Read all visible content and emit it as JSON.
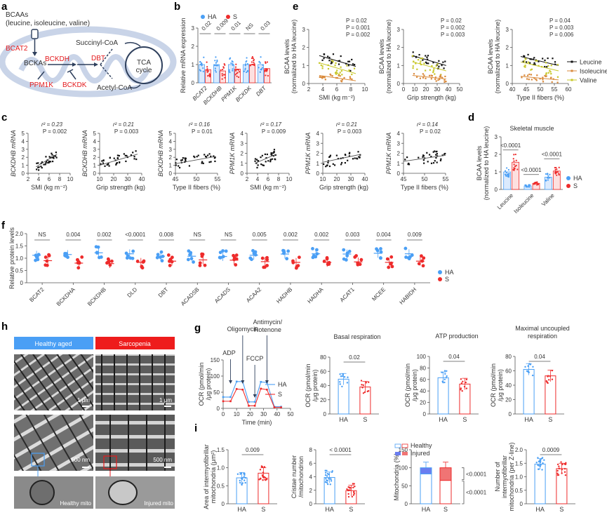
{
  "colors": {
    "HA": "#4a9ff5",
    "S": "#ee2b2b",
    "leucine": "#111111",
    "isoleucine": "#d98a3c",
    "valine": "#c8c82a",
    "mito": "#c9d4e8",
    "dark": "#2e3f5c",
    "enzyme": "#e41a1c"
  },
  "panel_labels": {
    "a": "a",
    "b": "b",
    "c": "c",
    "d": "d",
    "e": "e",
    "f": "f",
    "g": "g",
    "h": "h",
    "i": "i"
  },
  "groups": {
    "HA": "HA",
    "S": "S"
  },
  "panel_a": {
    "title_line1": "BCAAs",
    "title_line2": "(leucine, isoleucine, valine)",
    "bcat2": "BCAT2",
    "bckas": "BCKAs",
    "bckdh": "BCKDH",
    "ppm1k": "PPM1K",
    "bckdk": "BCKDK",
    "dbt": "DBT",
    "succinyl": "Succinyl-CoA",
    "acetyl": "Acetyl-CoA",
    "tca1": "TCA",
    "tca2": "cycle"
  },
  "panel_h": {
    "header_ha": "Healthy aged",
    "header_s": "Sarcopenia",
    "scale_1um": "1 μm",
    "scale_500nm": "500 nm",
    "healthy_mito": "Healthy mito",
    "injured_mito": "Injured mito"
  },
  "chart_data": [
    {
      "id": "b",
      "type": "bar",
      "ylabel": "Relative mRNA expression",
      "ylim": [
        0,
        3
      ],
      "yticks": [
        "0",
        "1",
        "2",
        "3"
      ],
      "categories": [
        "BCAT2",
        "BCKDHB",
        "PPM1K",
        "BCKDK",
        "DBT"
      ],
      "legend": [
        "HA",
        "S"
      ],
      "series": [
        {
          "name": "HA",
          "values": [
            1.0,
            1.0,
            1.0,
            1.0,
            1.0
          ]
        },
        {
          "name": "S",
          "values": [
            0.72,
            0.65,
            0.75,
            1.0,
            0.78
          ]
        }
      ],
      "annotations": [
        "0.02",
        "0.009",
        "0.01",
        "NS",
        "0.03"
      ]
    },
    {
      "id": "c",
      "type": "scatter",
      "plots": [
        {
          "ylabel": "BCKDHB mRNA",
          "xlabel": "SMI (kg m⁻²)",
          "xlim": [
            2,
            10
          ],
          "xticks": [
            "2",
            "4",
            "6",
            "8",
            "10"
          ],
          "ylim": [
            0,
            5
          ],
          "yticks": [
            "0",
            "1",
            "2",
            "3",
            "4",
            "5"
          ],
          "r2": "r² = 0.23",
          "p": "P = 0.002",
          "fit": [
            [
              3.5,
              0.8
            ],
            [
              7.5,
              2.4
            ]
          ]
        },
        {
          "ylabel": "BCKDHB mRNA",
          "xlabel": "Grip strength (kg)",
          "xlim": [
            10,
            40
          ],
          "xticks": [
            "10",
            "20",
            "30",
            "40"
          ],
          "ylim": [
            0,
            5
          ],
          "yticks": [
            "0",
            "1",
            "2",
            "3",
            "4",
            "5"
          ],
          "r2": "r² = 0.21",
          "p": "P = 0.003",
          "fit": [
            [
              10,
              1.0
            ],
            [
              37,
              2.4
            ]
          ]
        },
        {
          "ylabel": "BCKDHB mRNA",
          "xlabel": "Type II fibers (%)",
          "xlim": [
            45,
            55
          ],
          "xticks": [
            "45",
            "50",
            "55"
          ],
          "ylim": [
            0,
            5
          ],
          "yticks": [
            "0",
            "1",
            "2",
            "3",
            "4",
            "5"
          ],
          "r2": "r² = 0.16",
          "p": "P = 0.01",
          "fit": [
            [
              45,
              1.2
            ],
            [
              54.5,
              2.1
            ]
          ]
        },
        {
          "ylabel": "PPM1K mRNA",
          "xlabel": "SMI (kg m⁻²)",
          "xlim": [
            2,
            10
          ],
          "xticks": [
            "2",
            "4",
            "6",
            "8",
            "10"
          ],
          "ylim": [
            0,
            4
          ],
          "yticks": [
            "0",
            "1",
            "2",
            "3",
            "4"
          ],
          "r2": "r² = 0.17",
          "p": "P = 0.009",
          "fit": [
            [
              3.5,
              1.0
            ],
            [
              7.5,
              1.9
            ]
          ]
        },
        {
          "ylabel": "PPM1K mRNA",
          "xlabel": "Grip strength (kg)",
          "xlim": [
            10,
            40
          ],
          "xticks": [
            "10",
            "20",
            "30",
            "40"
          ],
          "ylim": [
            0,
            4
          ],
          "yticks": [
            "0",
            "1",
            "2",
            "3",
            "4"
          ],
          "r2": "r² = 0.21",
          "p": "P = 0.003",
          "fit": [
            [
              10,
              1.1
            ],
            [
              37,
              1.9
            ]
          ]
        },
        {
          "ylabel": "PPM1K mRNA",
          "xlabel": "Type II fibers (%)",
          "xlim": [
            45,
            55
          ],
          "xticks": [
            "45",
            "50",
            "55"
          ],
          "ylim": [
            0,
            4
          ],
          "yticks": [
            "0",
            "1",
            "2",
            "3",
            "4"
          ],
          "r2": "r² = 0.14",
          "p": "P = 0.02",
          "fit": [
            [
              45,
              1.2
            ],
            [
              55,
              1.8
            ]
          ]
        }
      ]
    },
    {
      "id": "d",
      "type": "bar",
      "title": "Skeletal muscle",
      "ylabel": "BCAA levels (normalized to HA leucine)",
      "ylim": [
        0,
        3
      ],
      "yticks": [
        "0",
        "1",
        "2",
        "3"
      ],
      "categories": [
        "Leucine",
        "Isoleucine",
        "Valine"
      ],
      "legend": [
        "HA",
        "S"
      ],
      "series": [
        {
          "name": "HA",
          "values": [
            1.0,
            0.2,
            0.7
          ]
        },
        {
          "name": "S",
          "values": [
            1.55,
            0.35,
            1.05
          ]
        }
      ],
      "annotations": [
        "<0.0001",
        "<0.0001",
        "<0.0001"
      ]
    },
    {
      "id": "e",
      "type": "scatter",
      "ylabel": "BCAA levels (normalized to HA leucine)",
      "legend": [
        "Leucine",
        "Isoleucine",
        "Valine"
      ],
      "plots": [
        {
          "xlabel": "SMI (kg m⁻²)",
          "xlim": [
            2,
            10
          ],
          "xticks": [
            "2",
            "4",
            "6",
            "8",
            "10"
          ],
          "ylim": [
            0,
            3
          ],
          "yticks": [
            "0",
            "1",
            "2",
            "3"
          ],
          "p": [
            "P = 0.02",
            "P = 0.001",
            "P = 0.002"
          ],
          "fits": [
            [
              [
                3.5,
                1.55
              ],
              [
                8.7,
                0.95
              ]
            ],
            [
              [
                3.5,
                1.15
              ],
              [
                8.7,
                0.55
              ]
            ],
            [
              [
                3.5,
                0.45
              ],
              [
                8.7,
                0.15
              ]
            ]
          ]
        },
        {
          "xlabel": "Grip strength (kg)",
          "xlim": [
            0,
            50
          ],
          "xticks": [
            "0",
            "10",
            "20",
            "30",
            "40",
            "50"
          ],
          "ylim": [
            0,
            3
          ],
          "yticks": [
            "0",
            "1",
            "2",
            "3"
          ],
          "p": [
            "P = 0.02",
            "P = 0.002",
            "P = 0.003"
          ],
          "fits": [
            [
              [
                8,
                1.55
              ],
              [
                38,
                1.0
              ]
            ],
            [
              [
                8,
                1.2
              ],
              [
                38,
                0.7
              ]
            ],
            [
              [
                8,
                0.45
              ],
              [
                38,
                0.25
              ]
            ]
          ]
        },
        {
          "xlabel": "Type II fibers (%)",
          "xlim": [
            40,
            60
          ],
          "xticks": [
            "40",
            "45",
            "50",
            "55",
            "60"
          ],
          "ylim": [
            0,
            3
          ],
          "yticks": [
            "0",
            "1",
            "2",
            "3"
          ],
          "p": [
            "P = 0.04",
            "P = 0.003",
            "P = 0.006"
          ],
          "fits": [
            [
              [
                43,
                1.5
              ],
              [
                56.5,
                1.0
              ]
            ],
            [
              [
                43,
                1.2
              ],
              [
                56.5,
                0.7
              ]
            ],
            [
              [
                43,
                0.4
              ],
              [
                56.5,
                0.2
              ]
            ]
          ]
        }
      ]
    },
    {
      "id": "f",
      "type": "scatter",
      "ylabel": "Relative protein levels",
      "ylim": [
        0,
        2.0
      ],
      "yticks": [
        "0",
        "0.5",
        "1.0",
        "1.5",
        "2.0"
      ],
      "categories": [
        "BCAT2",
        "BCKDHA",
        "BCKDHB",
        "DLD",
        "DBT",
        "ACADSB",
        "ACADS",
        "ACAA2",
        "HADHB",
        "HADHA",
        "ACAT1",
        "MCEE",
        "HABIDH"
      ],
      "legend": [
        "HA",
        "S"
      ],
      "series": [
        {
          "name": "HA",
          "values": [
            1.12,
            1.15,
            1.22,
            1.18,
            1.08,
            1.08,
            1.07,
            1.12,
            1.17,
            1.18,
            1.17,
            1.2,
            1.18
          ]
        },
        {
          "name": "S",
          "values": [
            0.9,
            0.8,
            0.78,
            0.83,
            0.88,
            0.93,
            0.92,
            0.86,
            0.83,
            0.83,
            0.85,
            0.83,
            0.88
          ]
        }
      ],
      "annotations": [
        "NS",
        "0.004",
        "0.002",
        "<0.0001",
        "0.008",
        "NS",
        "NS",
        "0.005",
        "0.002",
        "0.002",
        "0.003",
        "0.004",
        "0.009"
      ]
    },
    {
      "id": "g",
      "type": "line",
      "ylabel": "OCR (pmol/min /μg protein)",
      "xlabel": "Time (min)",
      "xlim": [
        0,
        50
      ],
      "xticks": [
        "0",
        "10",
        "20",
        "30",
        "40",
        "50"
      ],
      "ylim": [
        0,
        150
      ],
      "yticks": [
        "0",
        "50",
        "100",
        "150"
      ],
      "arrows": [
        "ADP",
        "Oligomycin",
        "FCCP",
        "Antimycin/ Rotenone"
      ],
      "series": [
        {
          "name": "HA",
          "x": [
            0,
            5.5,
            10,
            14.5,
            19,
            23.5,
            28,
            32.5,
            38,
            43
          ],
          "y": [
            35,
            35,
            83,
            83,
            20,
            20,
            82,
            80,
            5,
            5
          ]
        },
        {
          "name": "S",
          "x": [
            0,
            5.5,
            10,
            14.5,
            19,
            23.5,
            28,
            32.5,
            38,
            43
          ],
          "y": [
            22,
            22,
            60,
            58,
            8,
            8,
            61,
            58,
            3,
            3
          ]
        }
      ]
    },
    {
      "id": "g-basal",
      "type": "bar",
      "title": "Basal respiration",
      "ylabel": "OCR (pmol/min /μg protein)",
      "ylim": [
        0,
        80
      ],
      "yticks": [
        "0",
        "20",
        "40",
        "60",
        "80"
      ],
      "categories": [
        "HA",
        "S"
      ],
      "values": [
        49,
        38
      ],
      "annotation": "0.02"
    },
    {
      "id": "g-atp",
      "type": "bar",
      "title": "ATP production",
      "ylabel": "OCR (pmol/min /μg protein)",
      "ylim": [
        0,
        100
      ],
      "yticks": [
        "0",
        "20",
        "40",
        "60",
        "80",
        "100"
      ],
      "categories": [
        "HA",
        "S"
      ],
      "values": [
        63,
        52
      ],
      "annotation": "0.04"
    },
    {
      "id": "g-max",
      "type": "bar",
      "title": "Maximal uncoupled respiration",
      "ylabel": "OCR (pmol/min /μg protein)",
      "ylim": [
        0,
        80
      ],
      "yticks": [
        "0",
        "20",
        "40",
        "60",
        "80"
      ],
      "categories": [
        "HA",
        "S"
      ],
      "values": [
        62,
        53
      ],
      "annotation": "0.04"
    },
    {
      "id": "i-area",
      "type": "bar",
      "ylabel": "Area of intermyofibrillar mitochondria (μm²)",
      "ylim": [
        0,
        1.5
      ],
      "yticks": [
        "0",
        "0.5",
        "1.0",
        "1.5"
      ],
      "categories": [
        "HA",
        "S"
      ],
      "values": [
        0.72,
        0.85
      ],
      "annotation": "0.009"
    },
    {
      "id": "i-cristae",
      "type": "bar",
      "ylabel": "Cristae number /mitochondrion",
      "ylim": [
        0,
        8
      ],
      "yticks": [
        "0",
        "2",
        "4",
        "6",
        "8"
      ],
      "categories": [
        "HA",
        "S"
      ],
      "values": [
        3.9,
        1.95
      ],
      "annotation": "< 0.0001"
    },
    {
      "id": "i-mito",
      "type": "bar",
      "stacked": true,
      "ylabel": "Mitochondria (%)",
      "ylim": [
        0,
        150
      ],
      "yticks": [
        "0",
        "50",
        "100",
        "150"
      ],
      "categories": [
        "HA",
        "S"
      ],
      "series": [
        {
          "name": "Healthy",
          "values": [
            83,
            65
          ]
        },
        {
          "name": "Injured",
          "values": [
            17,
            35
          ]
        }
      ],
      "legend": [
        "Healthy",
        "Injured"
      ],
      "annotations": [
        "<0.0001",
        "<0.0001"
      ]
    },
    {
      "id": "i-number",
      "type": "bar",
      "ylabel": "Number of intermyofibrillar mitochondria (per Z-line)",
      "ylim": [
        0,
        2.0
      ],
      "yticks": [
        "0",
        "0.5",
        "1.0",
        "1.5",
        "2.0"
      ],
      "categories": [
        "HA",
        "S"
      ],
      "values": [
        1.47,
        1.3
      ],
      "annotation": "0.0009"
    }
  ]
}
